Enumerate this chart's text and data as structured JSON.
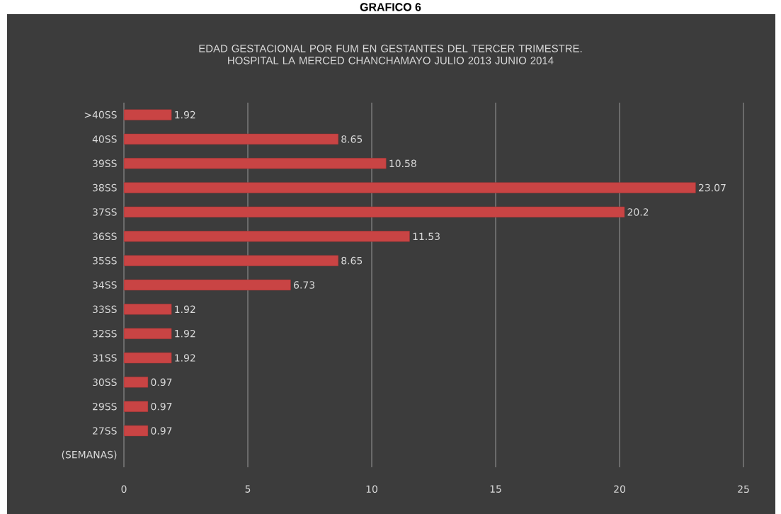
{
  "chart_data": {
    "type": "bar",
    "orientation": "horizontal",
    "title": "EDAD GESTACIONAL POR FUM  EN GESTANTES DEL TERCER TRIMESTRE. HOSPITAL LA MERCED CHANCHAMAYO JULIO  2013 JUNIO 2014",
    "annotations": [
      "GRAFICO 6"
    ],
    "categories": [
      ">40SS",
      "40SS",
      "39SS",
      "38SS",
      "37SS",
      "36SS",
      "35SS",
      "34SS",
      "33SS",
      "32SS",
      "31SS",
      "30SS",
      "29SS",
      "27SS",
      "(SEMANAS)"
    ],
    "values": [
      1.92,
      8.65,
      10.58,
      23.07,
      20.2,
      11.53,
      8.65,
      6.73,
      1.92,
      1.92,
      1.92,
      0.97,
      0.97,
      0.97,
      null
    ],
    "color": "#c94444",
    "xlim": [
      0,
      25
    ],
    "xticks": [
      0,
      5,
      10,
      15,
      20,
      25
    ],
    "grid": "x",
    "data_labels": true
  }
}
